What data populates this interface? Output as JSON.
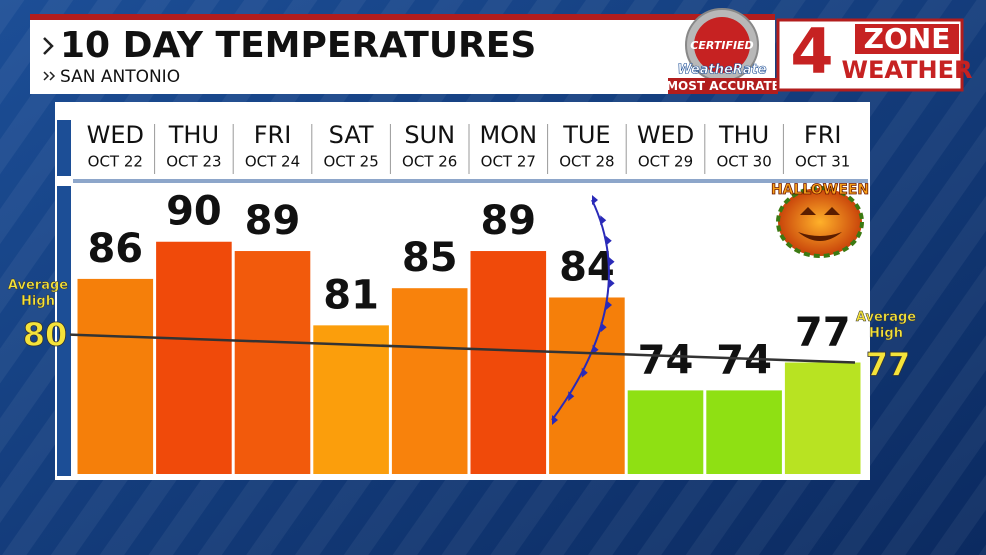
{
  "chart_data": {
    "type": "bar",
    "title": "10 DAY TEMPERATURES",
    "subtitle": "SAN ANTONIO",
    "categories": [
      "WED",
      "THU",
      "FRI",
      "SAT",
      "SUN",
      "MON",
      "TUE",
      "WED",
      "THU",
      "FRI"
    ],
    "dates": [
      "OCT 22",
      "OCT 23",
      "OCT 24",
      "OCT 25",
      "OCT 26",
      "OCT 27",
      "OCT 28",
      "OCT 29",
      "OCT 30",
      "OCT 31"
    ],
    "values": [
      86,
      90,
      89,
      81,
      85,
      89,
      84,
      74,
      74,
      77
    ],
    "colors": [
      "#f57f0a",
      "#f04a0a",
      "#f25a0c",
      "#fb9e0c",
      "#f8820c",
      "#f04a0a",
      "#f57f0a",
      "#8fe013",
      "#8fe013",
      "#b8e322"
    ],
    "ylim": [
      65,
      96
    ],
    "average_high": {
      "label": "Average High",
      "start": 80,
      "end": 77
    },
    "halloween": "HALLOWEEN",
    "branding": {
      "certified": "CERTIFIED",
      "weatherate": "WeatheRate",
      "most_accurate": "MOST ACCURATE",
      "channel": "4",
      "zone": "ZONE",
      "weather": "WEATHER"
    }
  }
}
